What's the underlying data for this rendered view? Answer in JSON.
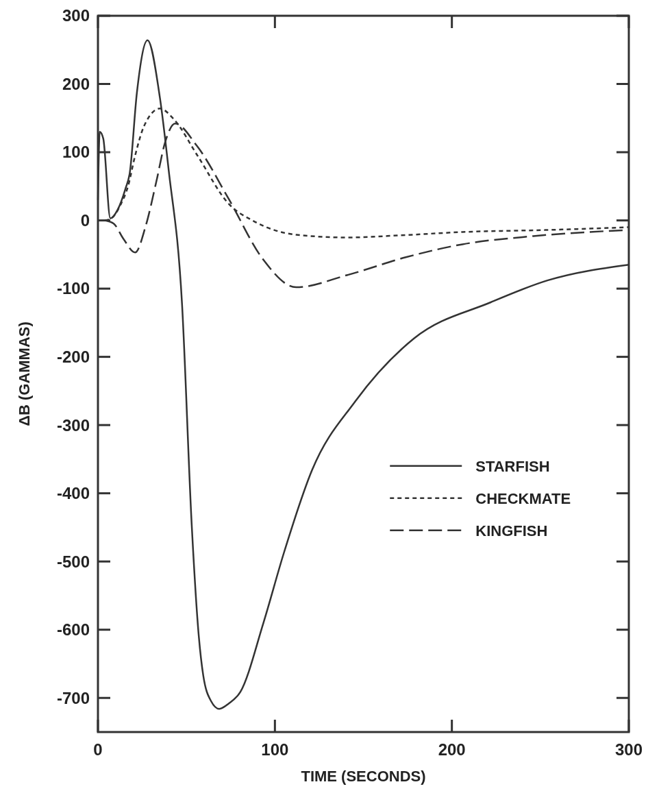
{
  "chart_data": {
    "type": "line",
    "xlabel": "TIME (SECONDS)",
    "ylabel": "ΔB (GAMMAS)",
    "xlim": [
      0,
      300
    ],
    "ylim": [
      -750,
      300
    ],
    "xticks": [
      0,
      100,
      200,
      300
    ],
    "yticks": [
      300,
      200,
      100,
      0,
      -100,
      -200,
      -300,
      -400,
      -500,
      -600,
      -700
    ],
    "legend": "right",
    "grid": false,
    "series": [
      {
        "name": "STARFISH",
        "color": "#333333",
        "line_style": "solid",
        "x": [
          0,
          1,
          3,
          7,
          11,
          15.6,
          18,
          22,
          28,
          35,
          40,
          47.5,
          53,
          57,
          59.5,
          64,
          68.5,
          74,
          80.5,
          93.5,
          105,
          121,
          145.5,
          178.6,
          222,
          254,
          300
        ],
        "values": [
          30,
          130,
          120,
          3,
          15,
          47,
          70,
          187,
          264,
          180,
          73,
          -122,
          -447,
          -610,
          -667,
          -705,
          -716,
          -708,
          -691,
          -590,
          -488,
          -366,
          -265,
          -173,
          -120,
          -88,
          -65
        ]
      },
      {
        "name": "CHECKMATE",
        "color": "#333333",
        "line_style": "dotted",
        "x": [
          4,
          8,
          13,
          17,
          21,
          26,
          35,
          43,
          56,
          74,
          88,
          112,
          141,
          170,
          206,
          254,
          300
        ],
        "values": [
          0,
          4,
          24,
          50,
          95,
          138,
          164,
          148,
          96,
          24,
          -1,
          -21,
          -25,
          -22,
          -17,
          -14,
          -10
        ]
      },
      {
        "name": "KINGFISH",
        "color": "#333333",
        "line_style": "dashed",
        "x": [
          4,
          9,
          14.4,
          21,
          27,
          33,
          38,
          43.6,
          56,
          74,
          93,
          112,
          141,
          174,
          206,
          246,
          300
        ],
        "values": [
          0,
          -5,
          -27,
          -47,
          -8,
          57,
          115,
          142,
          109,
          31,
          -56,
          -98,
          -80,
          -54,
          -35,
          -23,
          -14
        ]
      }
    ]
  }
}
